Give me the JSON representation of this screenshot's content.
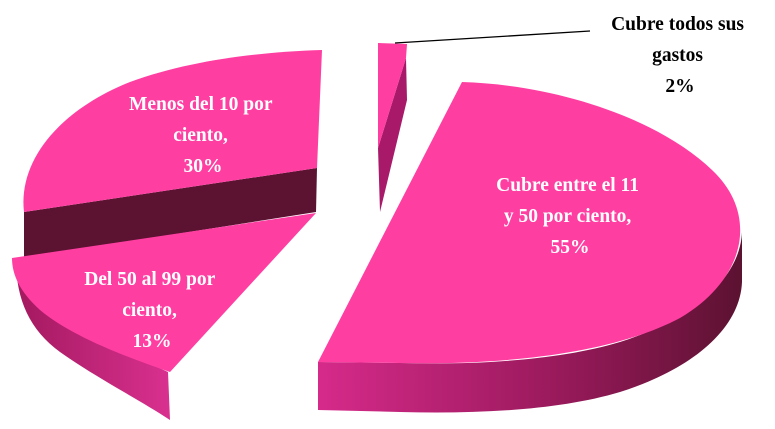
{
  "chart_data": {
    "type": "pie",
    "style": "3d-exploded",
    "slices": [
      {
        "label_lines": [
          "Cubre todos sus",
          "gastos",
          "2%"
        ],
        "value": 2
      },
      {
        "label_lines": [
          "Cubre entre el 11",
          "y 50 por ciento,",
          "55%"
        ],
        "value": 55
      },
      {
        "label_lines": [
          "Del 50 al 99 por",
          "ciento,",
          "13%"
        ],
        "value": 13
      },
      {
        "label_lines": [
          "Menos del 10 por",
          "ciento,",
          "30%"
        ],
        "value": 30
      }
    ],
    "colors": {
      "top": "#ff3ea2",
      "side_light": "#c21a78",
      "side_dark": "#5c1231",
      "leader_line": "#000000"
    }
  }
}
